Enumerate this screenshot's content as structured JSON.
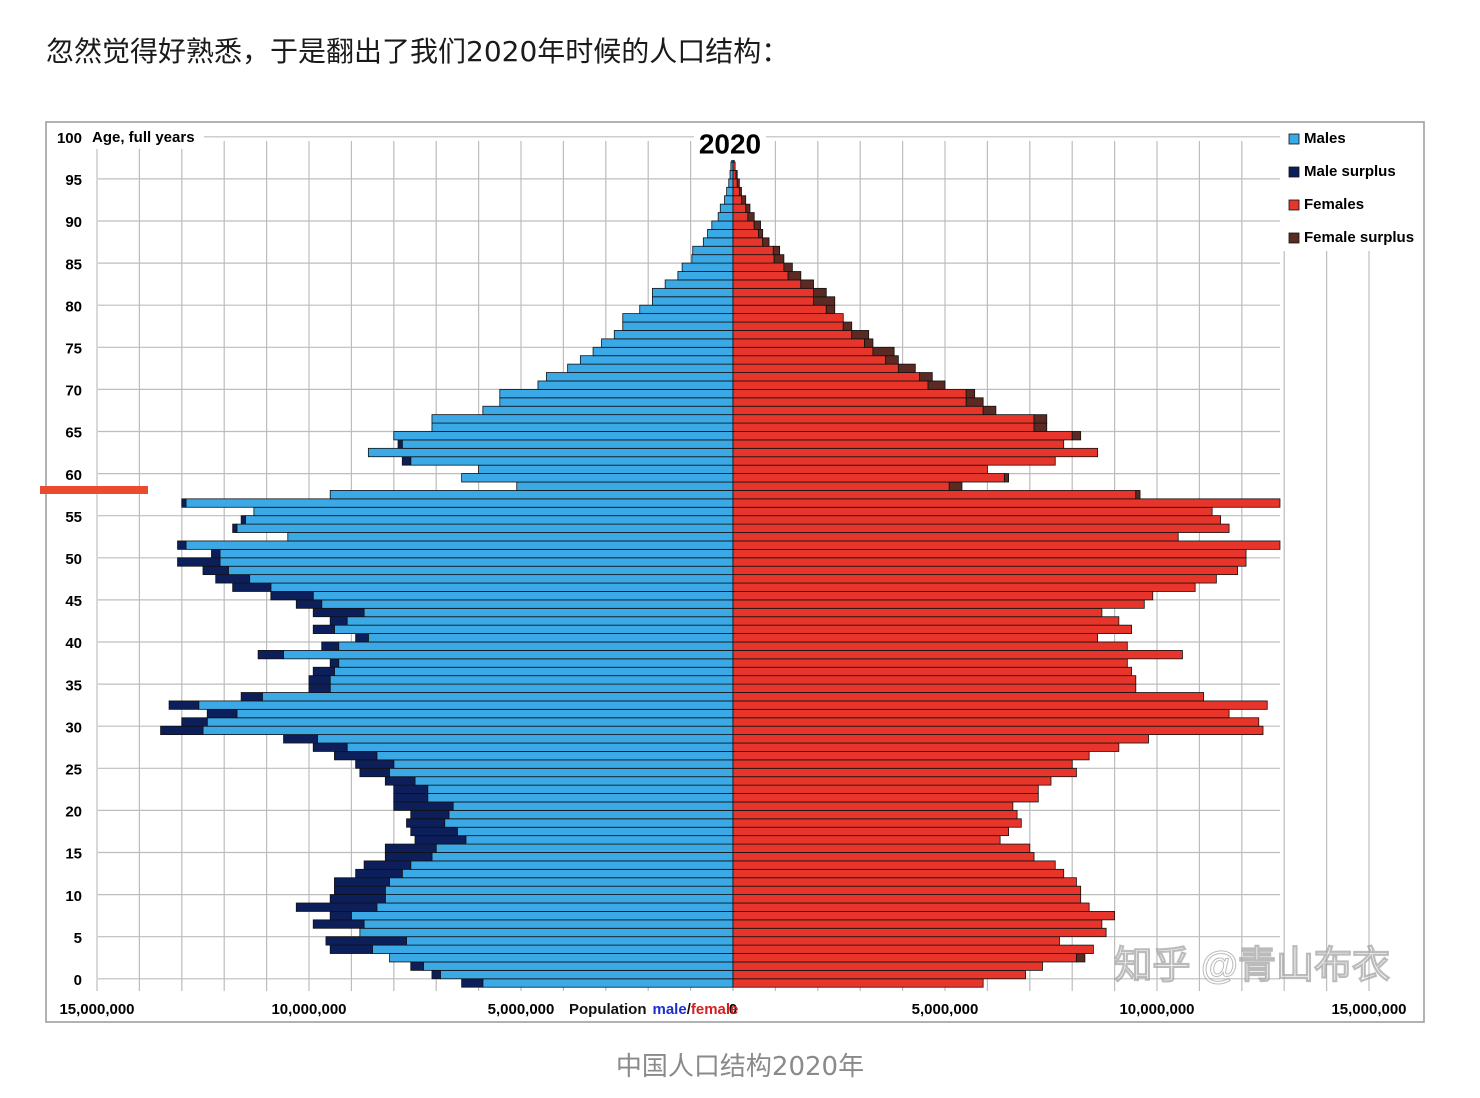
{
  "header": {
    "text": "忽然觉得好熟悉，于是翻出了我们2020年时候的人口结构："
  },
  "caption": "中国人口结构2020年",
  "watermark": "知乎 @青山布衣",
  "chart_data": {
    "type": "population_pyramid",
    "title": "2020",
    "y_label": "Age, full years",
    "x_label": [
      "Population",
      "male",
      "/",
      "female"
    ],
    "series": [
      {
        "name": "Males",
        "surplus_name": "Male surplus",
        "color": "#3ba9e6",
        "surplus_color": "#0c1f5a",
        "values": [
          6400000,
          7100000,
          7600000,
          8100000,
          9500000,
          9600000,
          8800000,
          9900000,
          9500000,
          10300000,
          9500000,
          9400000,
          9400000,
          8900000,
          8700000,
          8200000,
          8200000,
          7500000,
          7600000,
          7700000,
          7600000,
          8000000,
          8000000,
          8000000,
          8200000,
          8800000,
          8900000,
          9400000,
          9900000,
          10600000,
          13500000,
          13000000,
          12400000,
          13300000,
          11600000,
          10000000,
          10000000,
          9900000,
          9500000,
          11200000,
          9700000,
          8900000,
          9900000,
          9500000,
          9900000,
          10300000,
          10900000,
          11800000,
          12200000,
          12500000,
          13100000,
          12300000,
          13100000,
          10500000,
          11800000,
          11600000,
          11300000,
          13000000,
          9500000,
          5100000,
          6400000,
          6000000,
          7800000,
          8600000,
          7900000,
          8000000,
          7100000,
          7100000,
          5900000,
          5500000,
          5500000,
          4600000,
          4400000,
          3900000,
          3600000,
          3300000,
          3100000,
          2800000,
          2600000,
          2600000,
          2200000,
          1900000,
          1900000,
          1600000,
          1300000,
          1200000,
          970000,
          950000,
          700000,
          600000,
          500000,
          350000,
          300000,
          200000,
          150000,
          100000,
          70000,
          50000,
          30000,
          20000,
          10000
        ]
      },
      {
        "name": "Females",
        "surplus_name": "Female surplus",
        "color": "#e8352b",
        "surplus_color": "#5b2a22",
        "values": [
          5900000,
          6900000,
          7300000,
          8300000,
          8500000,
          7700000,
          8800000,
          8700000,
          9000000,
          8400000,
          8200000,
          8200000,
          8100000,
          7800000,
          7600000,
          7100000,
          7000000,
          6300000,
          6500000,
          6800000,
          6700000,
          6600000,
          7200000,
          7200000,
          7500000,
          8100000,
          8000000,
          8400000,
          9100000,
          9800000,
          12500000,
          12400000,
          11700000,
          12600000,
          11100000,
          9500000,
          9500000,
          9400000,
          9300000,
          10600000,
          9300000,
          8600000,
          9400000,
          9100000,
          8700000,
          9700000,
          9900000,
          10900000,
          11400000,
          11900000,
          12100000,
          12100000,
          12900000,
          10500000,
          11700000,
          11500000,
          11300000,
          12900000,
          9600000,
          5400000,
          6500000,
          6000000,
          7600000,
          8600000,
          7800000,
          8200000,
          7400000,
          7400000,
          6200000,
          5900000,
          5700000,
          5000000,
          4700000,
          4300000,
          3900000,
          3800000,
          3300000,
          3200000,
          2800000,
          2600000,
          2400000,
          2400000,
          2200000,
          1900000,
          1600000,
          1400000,
          1200000,
          1100000,
          850000,
          700000,
          650000,
          500000,
          400000,
          300000,
          200000,
          150000,
          100000,
          50000,
          30000,
          20000,
          10000
        ]
      }
    ],
    "ylim": [
      0,
      100
    ],
    "yticks": [
      0,
      5,
      10,
      15,
      20,
      25,
      30,
      35,
      40,
      45,
      50,
      55,
      60,
      65,
      70,
      75,
      80,
      85,
      90,
      95,
      100
    ],
    "xlim": [
      0,
      15000000
    ],
    "xticks": [
      {
        "value": 0,
        "label": "0"
      },
      {
        "value": 5000000,
        "label": "5,000,000"
      },
      {
        "value": 10000000,
        "label": "10,000,000"
      },
      {
        "value": 15000000,
        "label": "15,000,000"
      }
    ],
    "x_grid_step": 1000000,
    "grid": true,
    "legend": "top-right"
  }
}
